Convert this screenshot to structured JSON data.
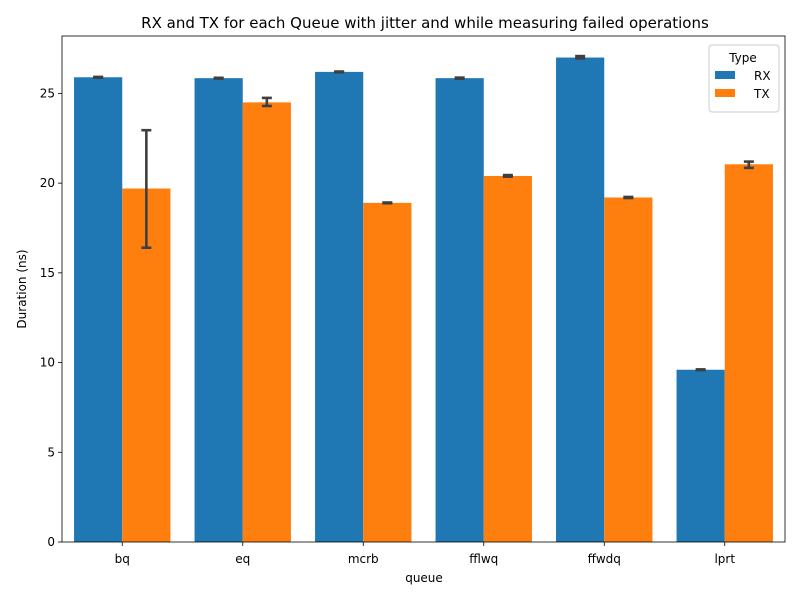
{
  "colors": {
    "rx": "#1f77b4",
    "tx": "#ff7f0e",
    "errorbar": "#3f3f3f"
  },
  "chart_data": {
    "type": "bar",
    "title": "RX and TX for each Queue with jitter and while measuring failed operations",
    "xlabel": "queue",
    "ylabel": "Duration (ns)",
    "ylim": [
      0,
      28.2
    ],
    "yticks": [
      0,
      5,
      10,
      15,
      20,
      25
    ],
    "categories": [
      "bq",
      "eq",
      "mcrb",
      "fflwq",
      "ffwdq",
      "lprt"
    ],
    "legend": {
      "title": "Type",
      "position": "top-right"
    },
    "series": [
      {
        "name": "RX",
        "values": [
          25.9,
          25.85,
          26.2,
          25.85,
          27.0,
          9.6
        ],
        "error_low": [
          25.88,
          25.83,
          26.18,
          25.82,
          26.95,
          9.58
        ],
        "error_high": [
          25.92,
          25.87,
          26.22,
          25.88,
          27.08,
          9.62
        ]
      },
      {
        "name": "TX",
        "values": [
          19.7,
          24.5,
          18.9,
          20.4,
          19.2,
          21.05
        ],
        "error_low": [
          16.4,
          24.3,
          18.88,
          20.36,
          19.17,
          20.85
        ],
        "error_high": [
          22.95,
          24.75,
          18.92,
          20.45,
          19.23,
          21.2
        ]
      }
    ]
  }
}
